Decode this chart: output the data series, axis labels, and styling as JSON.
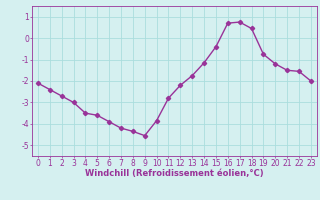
{
  "x": [
    0,
    1,
    2,
    3,
    4,
    5,
    6,
    7,
    8,
    9,
    10,
    11,
    12,
    13,
    14,
    15,
    16,
    17,
    18,
    19,
    20,
    21,
    22,
    23
  ],
  "y": [
    -2.1,
    -2.4,
    -2.7,
    -3.0,
    -3.5,
    -3.6,
    -3.9,
    -4.2,
    -4.35,
    -4.55,
    -3.85,
    -2.8,
    -2.2,
    -1.75,
    -1.15,
    -0.4,
    0.7,
    0.75,
    0.45,
    -0.75,
    -1.2,
    -1.5,
    -1.55,
    -2.0
  ],
  "xlim": [
    -0.5,
    23.5
  ],
  "ylim": [
    -5.5,
    1.5
  ],
  "yticks": [
    1,
    0,
    -1,
    -2,
    -3,
    -4,
    -5
  ],
  "xticks": [
    0,
    1,
    2,
    3,
    4,
    5,
    6,
    7,
    8,
    9,
    10,
    11,
    12,
    13,
    14,
    15,
    16,
    17,
    18,
    19,
    20,
    21,
    22,
    23
  ],
  "line_color": "#993399",
  "marker": "D",
  "marker_size": 2.2,
  "bg_color": "#d5f0f0",
  "grid_color": "#aadddd",
  "xlabel": "Windchill (Refroidissement éolien,°C)",
  "xlabel_fontsize": 6.0,
  "tick_fontsize": 5.5,
  "line_width": 1.0
}
